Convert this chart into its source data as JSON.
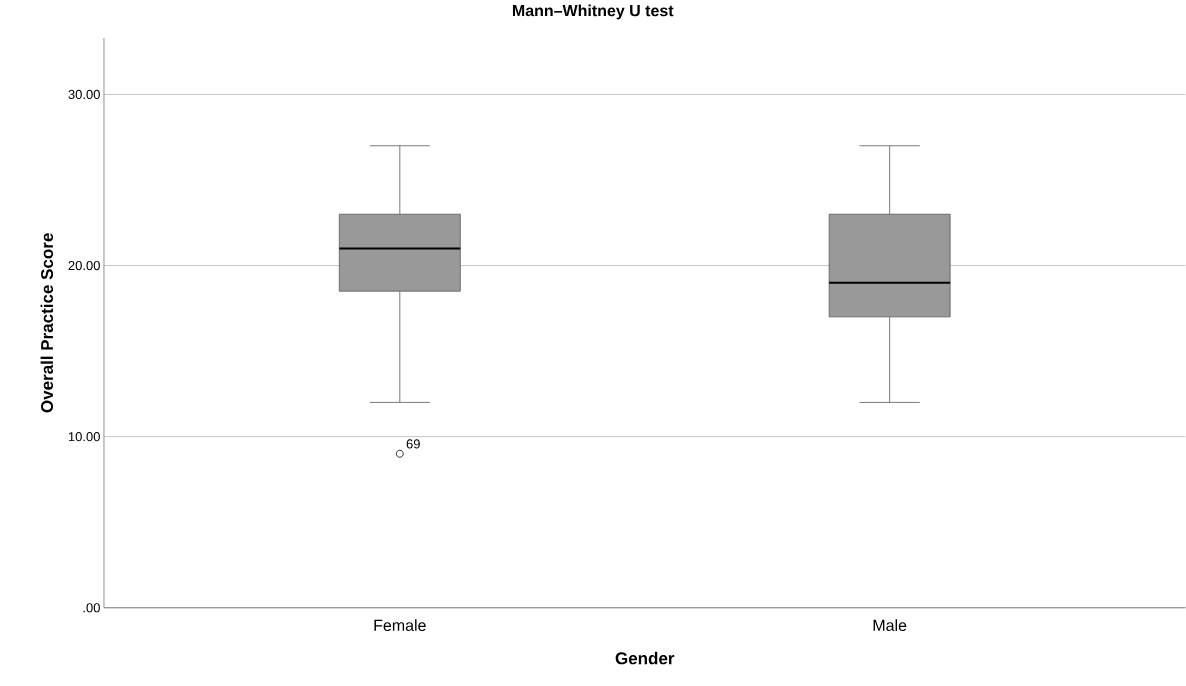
{
  "chart_data": {
    "type": "box",
    "title": "Mann–Whitney U test",
    "xlabel": "Gender",
    "ylabel": "Overall Practice Score",
    "categories": [
      "Female",
      "Male"
    ],
    "boxes": [
      {
        "low": 12,
        "q1": 18.5,
        "median": 21,
        "q3": 23,
        "high": 27,
        "outliers": [
          9
        ]
      },
      {
        "low": 12,
        "q1": 17,
        "median": 19,
        "q3": 23,
        "high": 27
      }
    ],
    "color": "#999999",
    "ylim": [
      0,
      33.3
    ],
    "yticks": [
      {
        "value": 0,
        "label": ".00"
      },
      {
        "value": 10,
        "label": "10.00"
      },
      {
        "value": 20,
        "label": "20.00"
      },
      {
        "value": 30,
        "label": "30.00"
      }
    ],
    "grid": "y",
    "annotations": [
      "69"
    ]
  }
}
